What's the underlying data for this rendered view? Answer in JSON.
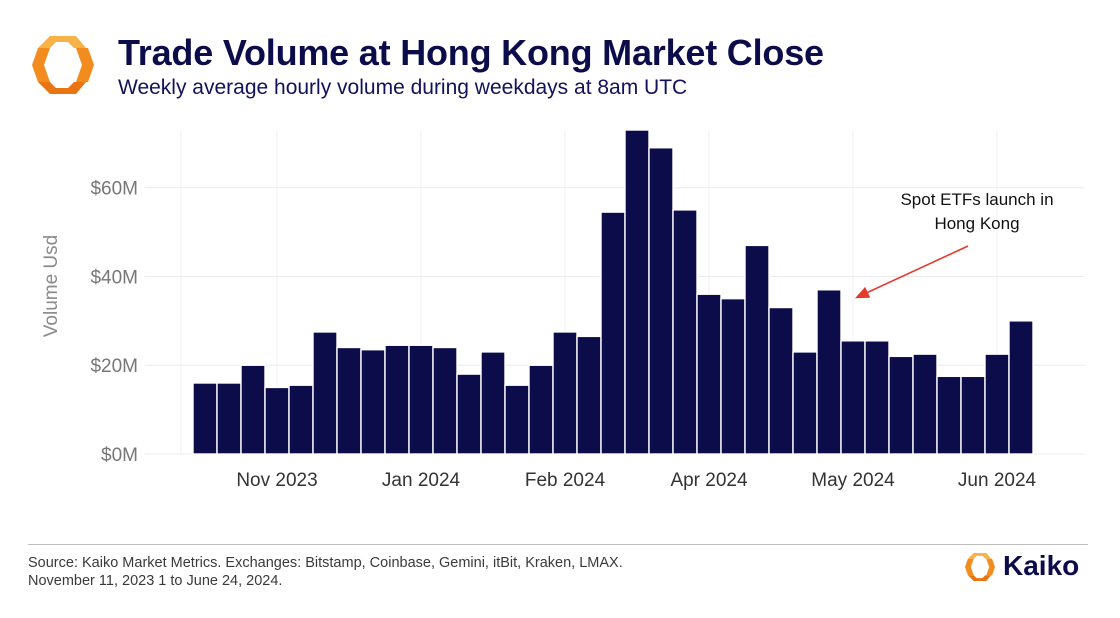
{
  "header": {
    "title": "Trade Volume at Hong Kong Market Close",
    "subtitle": "Weekly average hourly volume during weekdays at 8am UTC"
  },
  "footer": {
    "source_line1": "Source: Kaiko Market Metrics. Exchanges: Bitstamp, Coinbase, Gemini, itBit, Kraken, LMAX.",
    "source_line2": "November 11, 2023 1 to June 24, 2024.",
    "brand": "Kaiko"
  },
  "colors": {
    "bar": "#0c0c4a",
    "bar_edge": "#ffffff",
    "logo_orange": "#f28c1e",
    "logo_light": "#f7b24a",
    "arrow": "#e23b2e"
  },
  "chart_data": {
    "type": "bar",
    "title": "Trade Volume at Hong Kong Market Close",
    "subtitle": "Weekly average hourly volume during weekdays at 8am UTC",
    "xlabel": "",
    "ylabel": "Volume Usd",
    "ylim": [
      0,
      73
    ],
    "y_unit": "USD millions",
    "y_ticks": [
      {
        "value": 0,
        "label": "$0M"
      },
      {
        "value": 20,
        "label": "$20M"
      },
      {
        "value": 40,
        "label": "$40M"
      },
      {
        "value": 60,
        "label": "$60M"
      }
    ],
    "x_ticks": [
      {
        "label": "Nov 2023",
        "at_bar": 3.5
      },
      {
        "label": "Jan 2024",
        "at_bar": 9.5
      },
      {
        "label": "Feb 2024",
        "at_bar": 15.5
      },
      {
        "label": "Apr 2024",
        "at_bar": 21.5
      },
      {
        "label": "May 2024",
        "at_bar": 27.5
      },
      {
        "label": "Jun 2024",
        "at_bar": 33.5
      }
    ],
    "values": [
      16,
      16,
      20,
      15,
      15.5,
      27.5,
      24,
      23.5,
      24.5,
      24.5,
      24,
      18,
      23,
      15.5,
      20,
      27.5,
      26.5,
      54.5,
      73,
      69,
      55,
      36,
      35,
      47,
      33,
      23,
      37,
      25.5,
      25.5,
      22,
      22.5,
      17.5,
      17.5,
      22.5,
      30
    ],
    "grid": true,
    "legend": "none",
    "annotation": {
      "text_line1": "Spot ETFs launch in",
      "text_line2": "Hong Kong",
      "target_bar": 26,
      "target_value": 36
    }
  }
}
